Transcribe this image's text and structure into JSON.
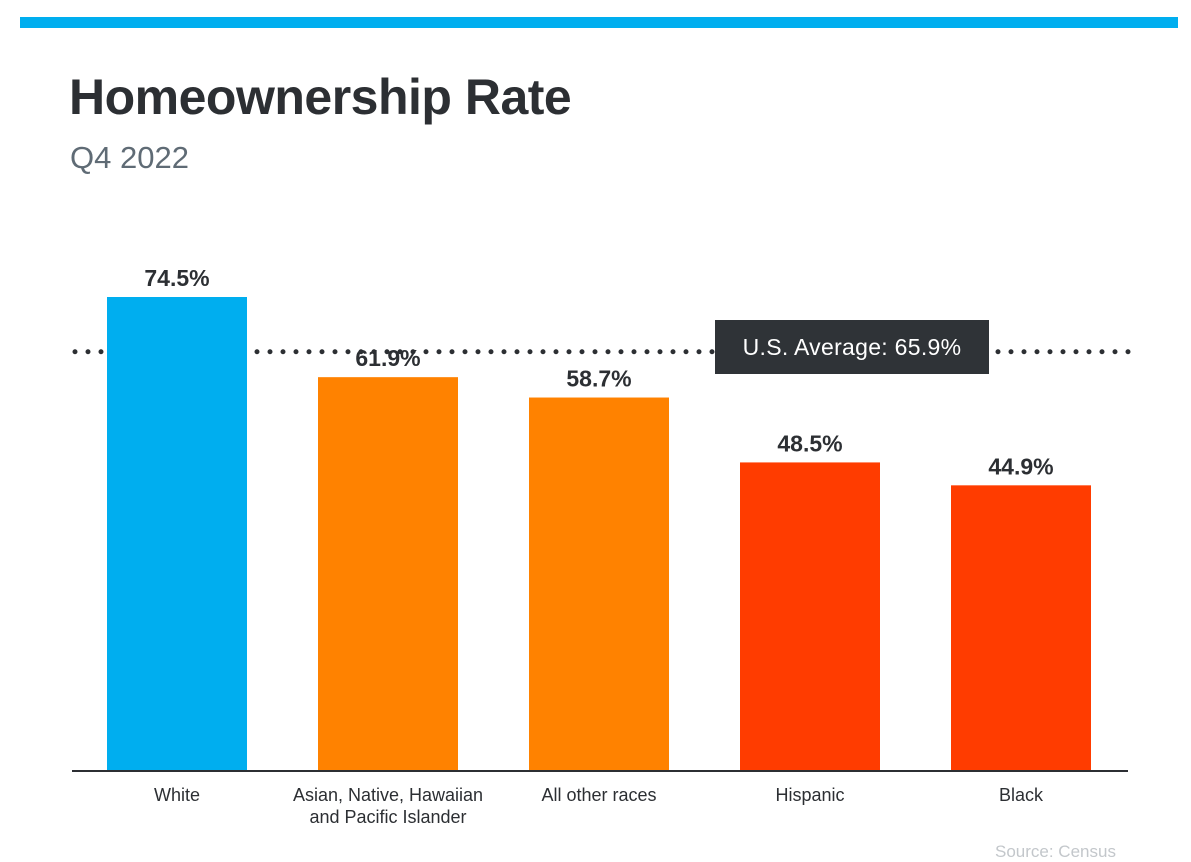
{
  "title": "Homeownership Rate",
  "subtitle": "Q4 2022",
  "average_label": "U.S. Average: 65.9%",
  "source": "Source: Census",
  "colors": {
    "top_bar": "#00aeef",
    "white": "#00aeef",
    "orange": "#ff8200",
    "red": "#ff3c00",
    "dark": "#2c2f33"
  },
  "chart_data": {
    "type": "bar",
    "categories": [
      "White",
      "Asian, Native, Hawaiian and Pacific Islander",
      "All other races",
      "Hispanic",
      "Black"
    ],
    "category_lines": [
      [
        "White"
      ],
      [
        "Asian, Native, Hawaiian",
        "and Pacific Islander"
      ],
      [
        "All other races"
      ],
      [
        "Hispanic"
      ],
      [
        "Black"
      ]
    ],
    "values": [
      74.5,
      61.9,
      58.7,
      48.5,
      44.9
    ],
    "value_labels": [
      "74.5%",
      "61.9%",
      "58.7%",
      "48.5%",
      "44.9%"
    ],
    "bar_colors": [
      "#00aeef",
      "#ff8200",
      "#ff8200",
      "#ff3c00",
      "#ff3c00"
    ],
    "reference_line": {
      "value": 65.9,
      "style": "dotted"
    },
    "ylim": [
      0,
      74.5
    ],
    "grid": false,
    "legend": "none"
  }
}
